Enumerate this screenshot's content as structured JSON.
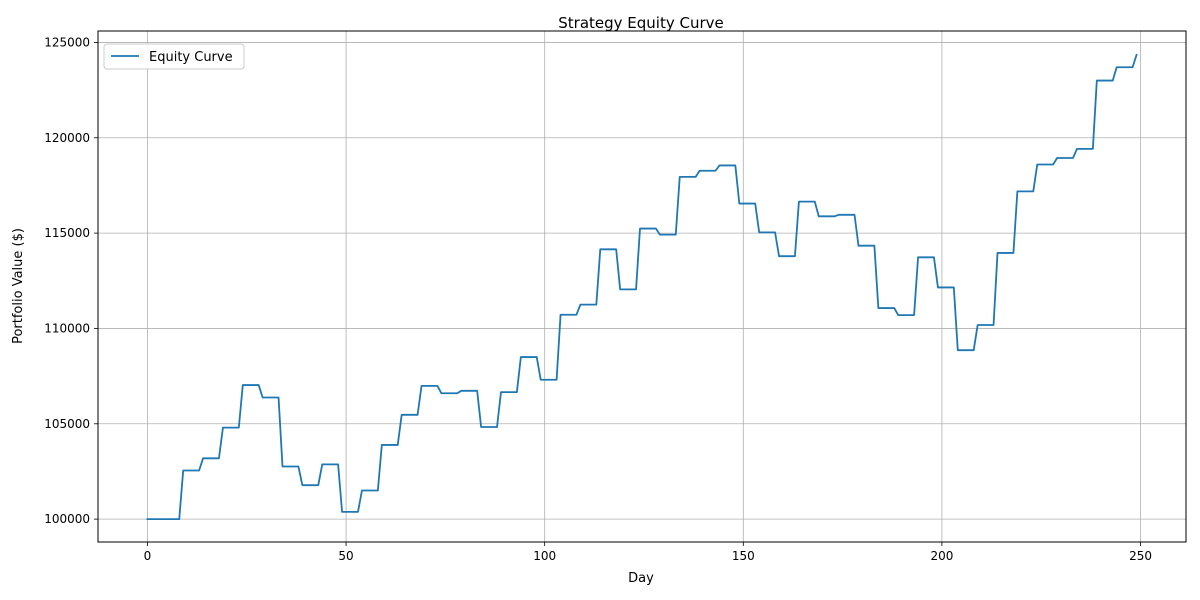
{
  "chart_data": {
    "type": "line",
    "title": "Strategy Equity Curve",
    "xlabel": "Day",
    "ylabel": "Portfolio Value ($)",
    "xlim": [
      -12.45,
      261.45
    ],
    "ylim": [
      98800,
      125600
    ],
    "x_ticks": [
      0,
      50,
      100,
      150,
      200,
      250
    ],
    "x_tick_labels": [
      "0",
      "50",
      "100",
      "150",
      "200",
      "250"
    ],
    "y_ticks": [
      100000,
      105000,
      110000,
      115000,
      120000,
      125000
    ],
    "y_tick_labels": [
      "100000",
      "105000",
      "110000",
      "115000",
      "120000",
      "125000"
    ],
    "grid": true,
    "legend_location": "upper left",
    "series": [
      {
        "name": "Equity Curve",
        "color": "#1f77b4",
        "points": [
          [
            0,
            100000
          ],
          [
            8,
            100000
          ],
          [
            9,
            102550
          ],
          [
            13,
            102550
          ],
          [
            14,
            103190
          ],
          [
            18,
            103190
          ],
          [
            19,
            104800
          ],
          [
            23,
            104800
          ],
          [
            24,
            107030
          ],
          [
            28,
            107030
          ],
          [
            29,
            106380
          ],
          [
            33,
            106380
          ],
          [
            34,
            102760
          ],
          [
            38,
            102760
          ],
          [
            39,
            101780
          ],
          [
            43,
            101780
          ],
          [
            44,
            102870
          ],
          [
            48,
            102870
          ],
          [
            49,
            100380
          ],
          [
            53,
            100380
          ],
          [
            54,
            101500
          ],
          [
            58,
            101500
          ],
          [
            59,
            103890
          ],
          [
            63,
            103890
          ],
          [
            64,
            105470
          ],
          [
            68,
            105470
          ],
          [
            69,
            106990
          ],
          [
            73,
            106990
          ],
          [
            74,
            106600
          ],
          [
            78,
            106600
          ],
          [
            79,
            106730
          ],
          [
            83,
            106730
          ],
          [
            84,
            104830
          ],
          [
            88,
            104830
          ],
          [
            89,
            106660
          ],
          [
            93,
            106660
          ],
          [
            94,
            108500
          ],
          [
            98,
            108500
          ],
          [
            99,
            107310
          ],
          [
            103,
            107310
          ],
          [
            104,
            110720
          ],
          [
            108,
            110720
          ],
          [
            109,
            111250
          ],
          [
            113,
            111250
          ],
          [
            114,
            114150
          ],
          [
            118,
            114150
          ],
          [
            119,
            112050
          ],
          [
            123,
            112050
          ],
          [
            124,
            115240
          ],
          [
            128,
            115240
          ],
          [
            129,
            114920
          ],
          [
            133,
            114920
          ],
          [
            134,
            117950
          ],
          [
            138,
            117950
          ],
          [
            139,
            118270
          ],
          [
            143,
            118270
          ],
          [
            144,
            118550
          ],
          [
            148,
            118550
          ],
          [
            149,
            116550
          ],
          [
            153,
            116550
          ],
          [
            154,
            115040
          ],
          [
            158,
            115040
          ],
          [
            159,
            113790
          ],
          [
            163,
            113790
          ],
          [
            164,
            116650
          ],
          [
            168,
            116650
          ],
          [
            169,
            115880
          ],
          [
            173,
            115880
          ],
          [
            174,
            115960
          ],
          [
            178,
            115960
          ],
          [
            179,
            114340
          ],
          [
            183,
            114340
          ],
          [
            184,
            111070
          ],
          [
            188,
            111070
          ],
          [
            189,
            110700
          ],
          [
            193,
            110700
          ],
          [
            194,
            113730
          ],
          [
            198,
            113730
          ],
          [
            199,
            112150
          ],
          [
            203,
            112150
          ],
          [
            204,
            108860
          ],
          [
            208,
            108860
          ],
          [
            209,
            110180
          ],
          [
            213,
            110180
          ],
          [
            214,
            113960
          ],
          [
            218,
            113960
          ],
          [
            219,
            117190
          ],
          [
            223,
            117190
          ],
          [
            224,
            118600
          ],
          [
            228,
            118600
          ],
          [
            229,
            118940
          ],
          [
            233,
            118940
          ],
          [
            234,
            119420
          ],
          [
            238,
            119420
          ],
          [
            239,
            123000
          ],
          [
            243,
            123000
          ],
          [
            244,
            123700
          ],
          [
            248,
            123700
          ],
          [
            249,
            124350
          ]
        ]
      }
    ]
  }
}
